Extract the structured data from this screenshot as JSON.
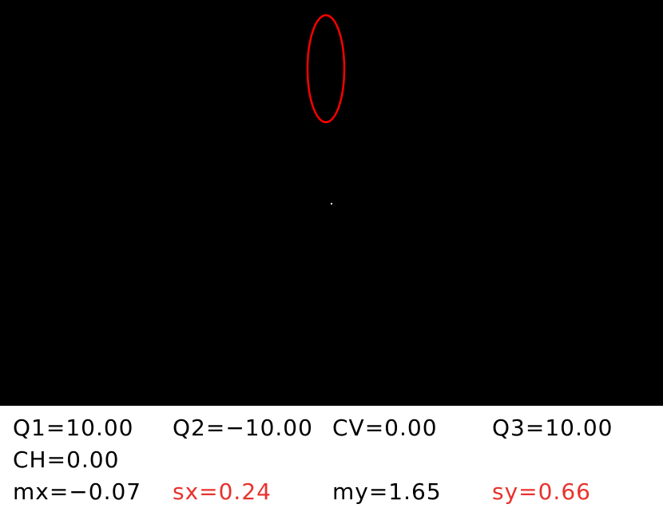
{
  "canvas": {
    "background": "#000000",
    "ellipse_color": "#ff0000",
    "point_color": "#ffffff"
  },
  "readouts": {
    "q1": "Q1=10.00",
    "q2": "Q2=−10.00",
    "cv": "CV=0.00",
    "q3": "Q3=10.00",
    "ch": "CH=0.00",
    "mx": "mx=−0.07",
    "sx": "sx=0.24",
    "my": "my=1.65",
    "sy": "sy=0.66"
  },
  "colors": {
    "panel_text": "#000000",
    "highlight_text": "#e8322d"
  }
}
